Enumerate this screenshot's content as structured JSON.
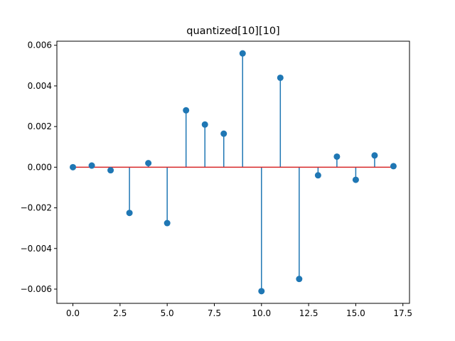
{
  "chart_data": {
    "type": "stem",
    "title": "quantized[10][10]",
    "xlabel": "",
    "ylabel": "",
    "x": [
      0,
      1,
      2,
      3,
      4,
      5,
      6,
      7,
      8,
      9,
      10,
      11,
      12,
      13,
      14,
      15,
      16,
      17
    ],
    "values": [
      0.0,
      8e-05,
      -0.00015,
      -0.00225,
      0.0002,
      -0.00275,
      0.0028,
      0.0021,
      0.00165,
      0.0056,
      -0.0061,
      0.0044,
      -0.0055,
      -0.0004,
      0.00052,
      -0.00062,
      0.00058,
      5e-05
    ],
    "xlim": [
      -0.85,
      17.85
    ],
    "ylim": [
      -0.0067,
      0.0062
    ],
    "xticks": [
      0.0,
      2.5,
      5.0,
      7.5,
      10.0,
      12.5,
      15.0,
      17.5
    ],
    "xtick_labels": [
      "0.0",
      "2.5",
      "5.0",
      "7.5",
      "10.0",
      "12.5",
      "15.0",
      "17.5"
    ],
    "yticks": [
      -0.006,
      -0.004,
      -0.002,
      0.0,
      0.002,
      0.004,
      0.006
    ],
    "ytick_labels": [
      "−0.006",
      "−0.004",
      "−0.002",
      "0.000",
      "0.002",
      "0.004",
      "0.006"
    ],
    "grid": false,
    "colors": {
      "stem": "#1f77b4",
      "marker": "#1f77b4",
      "baseline": "#d62728"
    }
  }
}
